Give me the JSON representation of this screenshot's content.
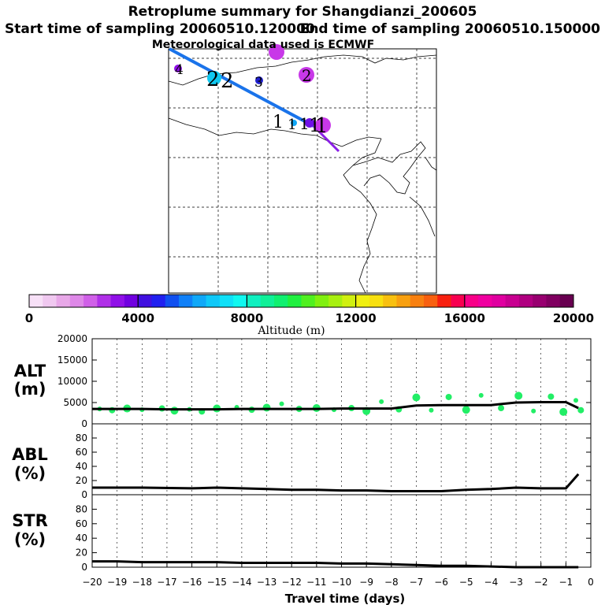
{
  "title": "Retroplume summary for Shangdianzi_200605",
  "subtitle_start": "Start time of sampling 20060510.120000",
  "subtitle_end": "End time of sampling 20060510.150000",
  "met_note": "Meteorological data used is ECMWF",
  "colorbar": {
    "label": "Altitude (m)",
    "ticks": [
      "0",
      "4000",
      "8000",
      "12000",
      "16000",
      "20000"
    ],
    "colors": [
      "#f7e0f7",
      "#f0c8f0",
      "#e8a8e8",
      "#de88e8",
      "#d060e8",
      "#b030e8",
      "#9010e8",
      "#7000e0",
      "#4010e0",
      "#2020f0",
      "#1050f0",
      "#1080f8",
      "#10a8f8",
      "#10c8f8",
      "#10e0f8",
      "#10f8f0",
      "#10f0c0",
      "#10f098",
      "#10f070",
      "#20f040",
      "#50f020",
      "#80f010",
      "#a8f010",
      "#d0f010",
      "#f0f010",
      "#f8e010",
      "#f8c010",
      "#f8a010",
      "#f88010",
      "#f86010",
      "#f82010",
      "#f80050",
      "#f80088",
      "#f000a0",
      "#e000a0",
      "#c80090",
      "#b00080",
      "#980070",
      "#800060",
      "#680050"
    ],
    "tick_values": [
      0,
      4000,
      8000,
      12000,
      16000,
      20000
    ]
  },
  "map": {
    "plume_labels": [
      {
        "text": "4",
        "color": "#7000e0"
      },
      {
        "text": "2",
        "color": "#000000"
      },
      {
        "text": "2",
        "color": "#000000"
      },
      {
        "text": "3",
        "color": "#000000"
      },
      {
        "text": "2",
        "color": "#000000"
      },
      {
        "text": "1",
        "color": "#000000"
      },
      {
        "text": "1",
        "color": "#000000"
      },
      {
        "text": "1",
        "color": "#000000"
      },
      {
        "text": "1",
        "color": "#000000"
      },
      {
        "text": "1",
        "color": "#000000"
      }
    ]
  },
  "panels": {
    "alt": {
      "label_top": "ALT",
      "label_bottom": "(m)"
    },
    "abl": {
      "label_top": "ABL",
      "label_bottom": "(%)"
    },
    "str": {
      "label_top": "STR",
      "label_bottom": "(%)"
    }
  },
  "chart_data": [
    {
      "type": "line",
      "title": "ALT (m)",
      "xlabel": "",
      "ylabel": "ALT (m)",
      "xlim": [
        -20,
        0
      ],
      "ylim": [
        0,
        20000
      ],
      "yticks": [
        0,
        5000,
        10000,
        15000,
        20000
      ],
      "x": [
        -20,
        -19,
        -18,
        -17,
        -16,
        -15,
        -14,
        -13,
        -12,
        -11,
        -10,
        -9,
        -8,
        -7,
        -6,
        -5,
        -4,
        -3,
        -2,
        -1,
        -0.5
      ],
      "series": [
        {
          "name": "mean altitude",
          "color": "#000000",
          "values": [
            3500,
            3500,
            3500,
            3400,
            3400,
            3400,
            3500,
            3500,
            3500,
            3500,
            3600,
            3600,
            3600,
            4300,
            4400,
            4400,
            4400,
            5000,
            5100,
            5100,
            3700
          ]
        }
      ],
      "scatter_points": [
        {
          "x": -19.7,
          "y": 3500
        },
        {
          "x": -19.2,
          "y": 3200
        },
        {
          "x": -18.6,
          "y": 3600
        },
        {
          "x": -18,
          "y": 3300
        },
        {
          "x": -17.2,
          "y": 3600
        },
        {
          "x": -16.7,
          "y": 3100
        },
        {
          "x": -16.1,
          "y": 3400
        },
        {
          "x": -15.6,
          "y": 2900
        },
        {
          "x": -15,
          "y": 3600
        },
        {
          "x": -14.2,
          "y": 3900
        },
        {
          "x": -13.6,
          "y": 3300
        },
        {
          "x": -13,
          "y": 3800
        },
        {
          "x": -12.4,
          "y": 4700
        },
        {
          "x": -11.7,
          "y": 3500
        },
        {
          "x": -11,
          "y": 3700
        },
        {
          "x": -10.3,
          "y": 3300
        },
        {
          "x": -9.6,
          "y": 3700
        },
        {
          "x": -9,
          "y": 3000
        },
        {
          "x": -8.4,
          "y": 5200
        },
        {
          "x": -7.7,
          "y": 3400
        },
        {
          "x": -7,
          "y": 6200
        },
        {
          "x": -6.4,
          "y": 3200
        },
        {
          "x": -5.7,
          "y": 6300
        },
        {
          "x": -5,
          "y": 3300
        },
        {
          "x": -4.4,
          "y": 6700
        },
        {
          "x": -3.6,
          "y": 3700
        },
        {
          "x": -2.9,
          "y": 6600
        },
        {
          "x": -2.3,
          "y": 3000
        },
        {
          "x": -1.6,
          "y": 6400
        },
        {
          "x": -1.1,
          "y": 2800
        },
        {
          "x": -0.6,
          "y": 5500
        },
        {
          "x": -0.4,
          "y": 3200
        }
      ]
    },
    {
      "type": "line",
      "title": "ABL (%)",
      "ylabel": "ABL (%)",
      "xlim": [
        -20,
        0
      ],
      "ylim": [
        0,
        100
      ],
      "yticks": [
        0,
        20,
        40,
        60,
        80
      ],
      "x": [
        -20,
        -18,
        -16,
        -15,
        -14,
        -13,
        -12,
        -11,
        -10,
        -9,
        -8,
        -7,
        -6,
        -5,
        -4,
        -3,
        -2,
        -1,
        -0.5
      ],
      "series": [
        {
          "name": "ABL fraction",
          "color": "#000000",
          "values": [
            10,
            10,
            9,
            10,
            9,
            8,
            7,
            7,
            6,
            6,
            5,
            5,
            5,
            7,
            8,
            10,
            9,
            9,
            29
          ]
        }
      ]
    },
    {
      "type": "line",
      "title": "STR (%)",
      "ylabel": "STR (%)",
      "xlabel": "Travel time (days)",
      "xlim": [
        -20,
        0
      ],
      "ylim": [
        0,
        100
      ],
      "yticks": [
        0,
        20,
        40,
        60,
        80
      ],
      "xticks": [
        -20,
        -19,
        -18,
        -17,
        -16,
        -15,
        -14,
        -13,
        -12,
        -11,
        -10,
        -9,
        -8,
        -7,
        -6,
        -5,
        -4,
        -3,
        -2,
        -1,
        0
      ],
      "x": [
        -20,
        -19,
        -18,
        -17,
        -16,
        -15,
        -14,
        -13,
        -12,
        -11,
        -10,
        -9,
        -8,
        -7,
        -6,
        -5,
        -4,
        -3,
        -2,
        -1,
        -0.5
      ],
      "series": [
        {
          "name": "stratospheric fraction",
          "color": "#000000",
          "values": [
            8,
            8,
            7,
            7,
            7,
            7,
            6,
            6,
            6,
            6,
            5,
            5,
            4,
            3,
            2,
            2,
            1,
            0,
            0,
            0,
            0
          ]
        }
      ]
    }
  ]
}
